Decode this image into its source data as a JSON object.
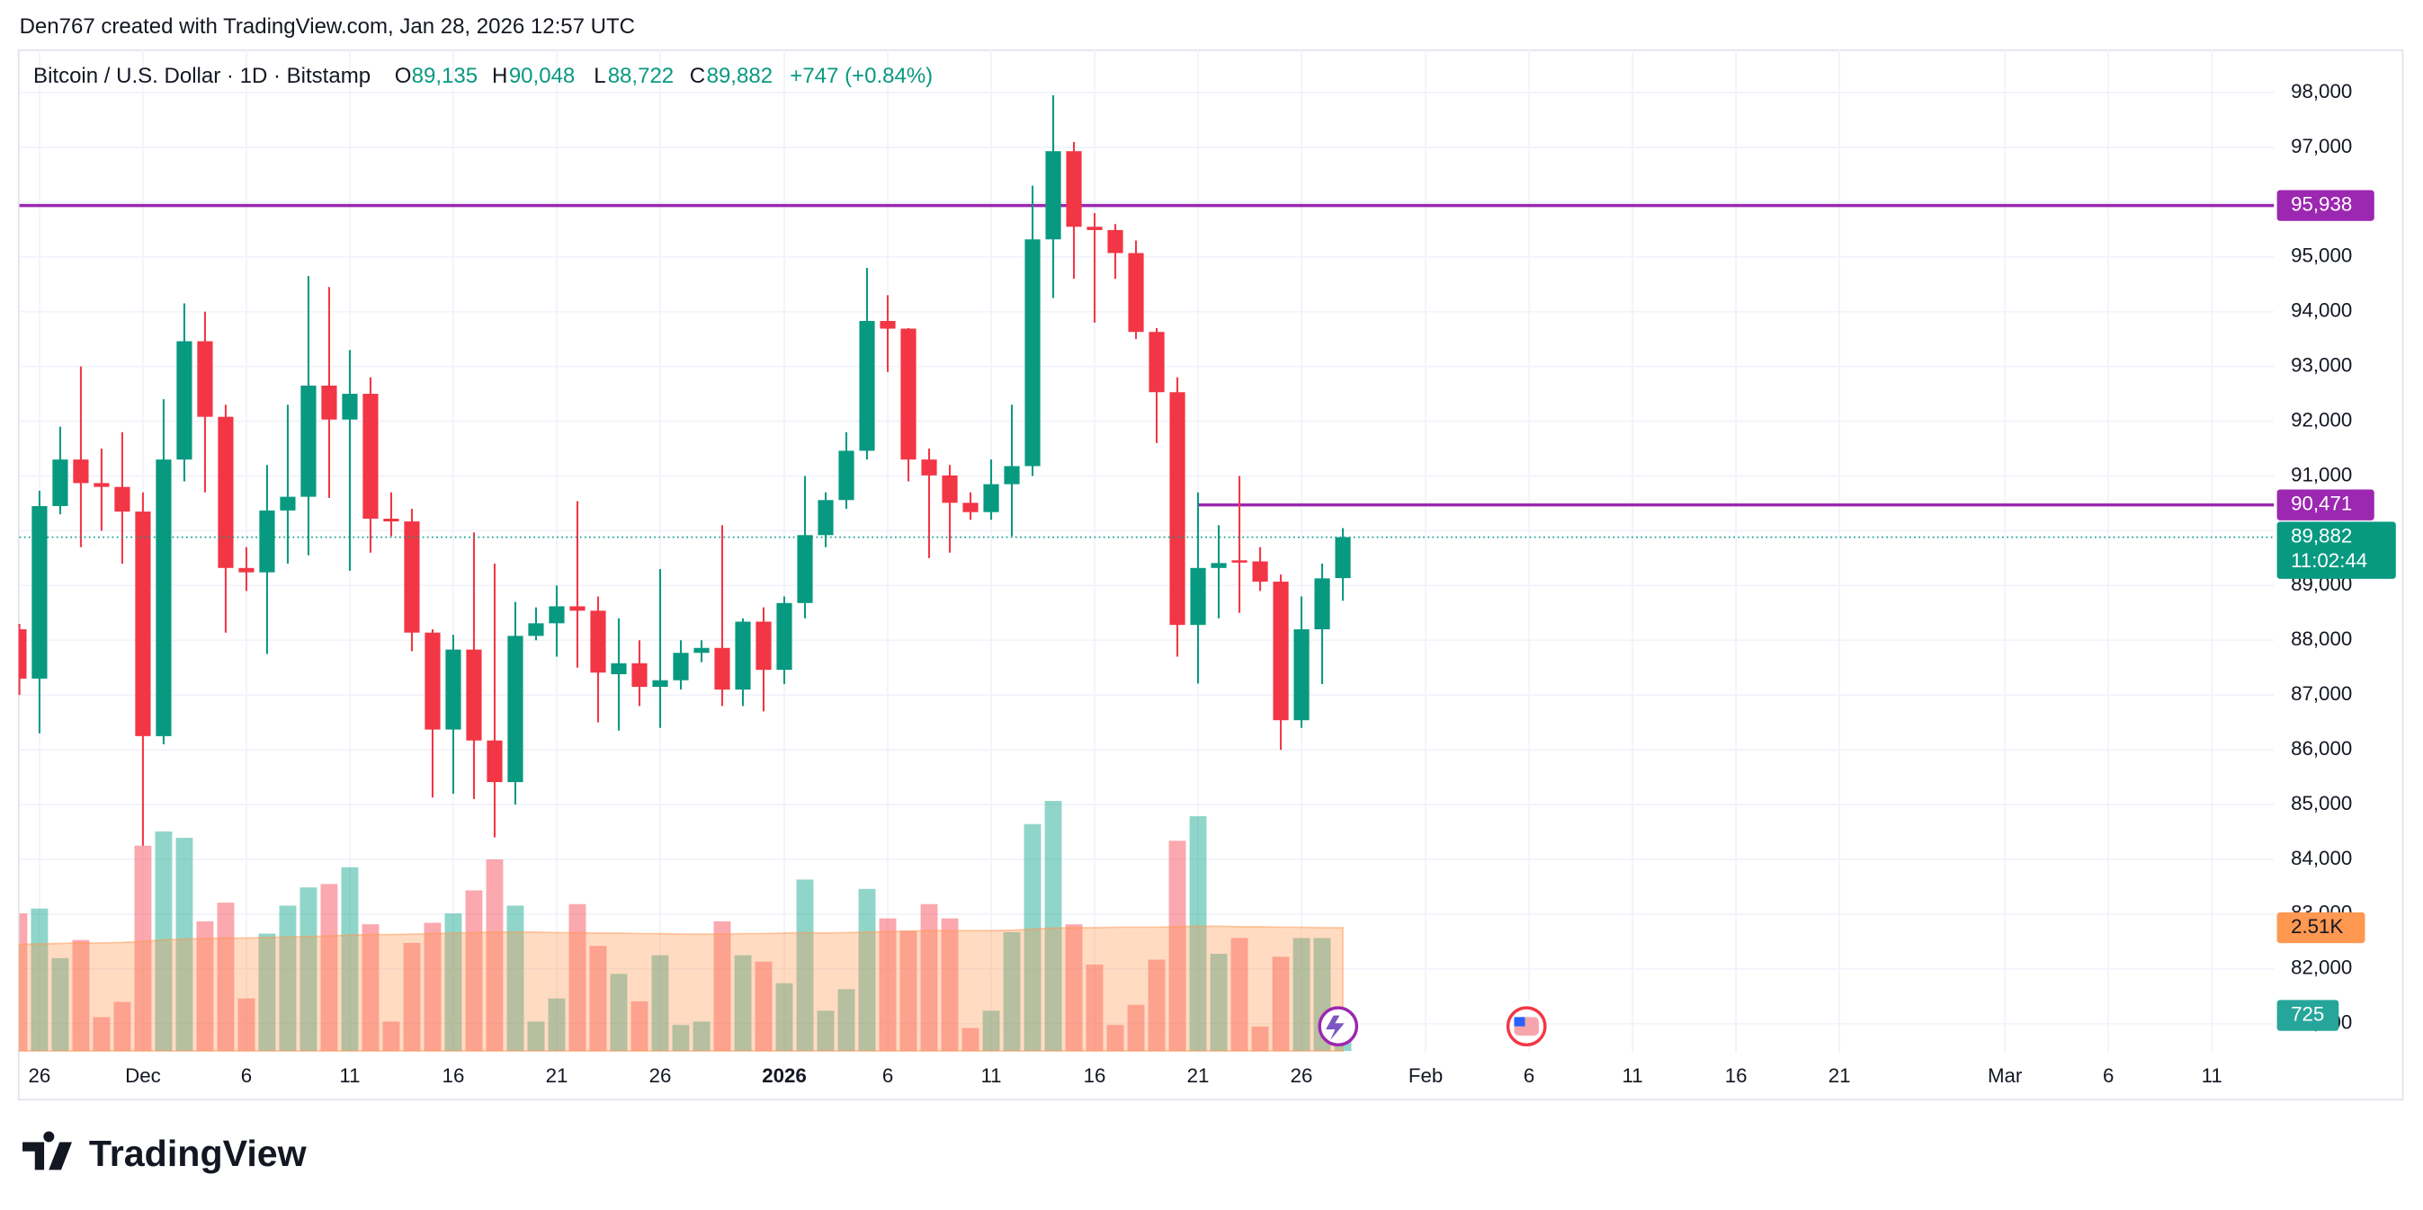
{
  "credit": "Den767 created with TradingView.com, Jan 28, 2026 12:57 UTC",
  "brand": "TradingView",
  "chart_data": {
    "type": "candlestick",
    "title": "Bitcoin / U.S. Dollar · 1D · Bitstamp",
    "ohlc_header": [
      {
        "label": "O",
        "value": "89,135"
      },
      {
        "label": "H",
        "value": "90,048"
      },
      {
        "label": "L",
        "value": "88,722"
      },
      {
        "label": "C",
        "value": "89,882"
      }
    ],
    "change": "+747 (+0.84%)",
    "up_color": "#089981",
    "down_color": "#f23645",
    "volume_up_color": "#22ab94",
    "volume_down_color": "#f7525f",
    "volume_ma_color": "#ff9850",
    "xlim": [
      "2025-11-25",
      "2026-03-14"
    ],
    "xticks": [
      {
        "value": "2025-11-26",
        "label": "26"
      },
      {
        "value": "2025-12-01",
        "label": "Dec"
      },
      {
        "value": "2025-12-06",
        "label": "6"
      },
      {
        "value": "2025-12-11",
        "label": "11"
      },
      {
        "value": "2025-12-16",
        "label": "16"
      },
      {
        "value": "2025-12-21",
        "label": "21"
      },
      {
        "value": "2025-12-26",
        "label": "26"
      },
      {
        "value": "2026-01-01",
        "label": "2026"
      },
      {
        "value": "2026-01-06",
        "label": "6"
      },
      {
        "value": "2026-01-11",
        "label": "11"
      },
      {
        "value": "2026-01-16",
        "label": "16"
      },
      {
        "value": "2026-01-21",
        "label": "21"
      },
      {
        "value": "2026-01-26",
        "label": "26"
      },
      {
        "value": "2026-02-01",
        "label": "Feb"
      },
      {
        "value": "2026-02-06",
        "label": "6"
      },
      {
        "value": "2026-02-11",
        "label": "11"
      },
      {
        "value": "2026-02-16",
        "label": "16"
      },
      {
        "value": "2026-02-21",
        "label": "21"
      },
      {
        "value": "2026-03-01",
        "label": "Mar"
      },
      {
        "value": "2026-03-06",
        "label": "6"
      },
      {
        "value": "2026-03-11",
        "label": "11"
      }
    ],
    "ylim": [
      80500,
      98800
    ],
    "yticks": [
      {
        "value": 81000,
        "label": "81,000"
      },
      {
        "value": 82000,
        "label": "82,000"
      },
      {
        "value": 83000,
        "label": "83,000"
      },
      {
        "value": 84000,
        "label": "84,000"
      },
      {
        "value": 85000,
        "label": "85,000"
      },
      {
        "value": 86000,
        "label": "86,000"
      },
      {
        "value": 87000,
        "label": "87,000"
      },
      {
        "value": 88000,
        "label": "88,000"
      },
      {
        "value": 89000,
        "label": "89,000"
      },
      {
        "value": 90000,
        "label": "90,000"
      },
      {
        "value": 91000,
        "label": "91,000"
      },
      {
        "value": 92000,
        "label": "92,000"
      },
      {
        "value": 93000,
        "label": "93,000"
      },
      {
        "value": 94000,
        "label": "94,000"
      },
      {
        "value": 95000,
        "label": "95,000"
      },
      {
        "value": 96000,
        "label": "96,000"
      },
      {
        "value": 97000,
        "label": "97,000"
      },
      {
        "value": 98000,
        "label": "98,000"
      }
    ],
    "y2lim": [
      0,
      20400
    ],
    "grid": true,
    "hlines": [
      {
        "value": 95938,
        "label": "95,938",
        "start": "2025-11-25",
        "color": "#9c27b0"
      },
      {
        "value": 90471,
        "label": "90,471",
        "start": "2026-01-21",
        "color": "#9c27b0"
      }
    ],
    "last_price_label": "89,882",
    "countdown": "11:02:44",
    "volume_ma_label": "2.51K",
    "candles": [
      {
        "date": "2025-11-25",
        "open": 88200,
        "high": 88300,
        "low": 87000,
        "close": 87300,
        "volume": 2800
      },
      {
        "date": "2025-11-26",
        "open": 87300,
        "high": 90730,
        "low": 86300,
        "close": 90450,
        "volume": 2900
      },
      {
        "date": "2025-11-27",
        "open": 90450,
        "high": 91900,
        "low": 90300,
        "close": 91300,
        "volume": 1890
      },
      {
        "date": "2025-11-28",
        "open": 91300,
        "high": 93000,
        "low": 89700,
        "close": 90870,
        "volume": 2260
      },
      {
        "date": "2025-11-29",
        "open": 90870,
        "high": 91500,
        "low": 90000,
        "close": 90800,
        "volume": 690
      },
      {
        "date": "2025-11-30",
        "open": 90800,
        "high": 91800,
        "low": 89400,
        "close": 90350,
        "volume": 1000
      },
      {
        "date": "2025-12-01",
        "open": 90350,
        "high": 90700,
        "low": 84250,
        "close": 86250,
        "volume": 4180
      },
      {
        "date": "2025-12-02",
        "open": 86250,
        "high": 92400,
        "low": 86100,
        "close": 91300,
        "volume": 4470
      },
      {
        "date": "2025-12-03",
        "open": 91300,
        "high": 94150,
        "low": 90900,
        "close": 93460,
        "volume": 4340
      },
      {
        "date": "2025-12-04",
        "open": 93460,
        "high": 94000,
        "low": 90700,
        "close": 92080,
        "volume": 2640
      },
      {
        "date": "2025-12-05",
        "open": 92080,
        "high": 92300,
        "low": 88140,
        "close": 89320,
        "volume": 3020
      },
      {
        "date": "2025-12-06",
        "open": 89320,
        "high": 89700,
        "low": 88900,
        "close": 89240,
        "volume": 1070
      },
      {
        "date": "2025-12-07",
        "open": 89240,
        "high": 91200,
        "low": 87750,
        "close": 90370,
        "volume": 2390
      },
      {
        "date": "2025-12-08",
        "open": 90370,
        "high": 92300,
        "low": 89400,
        "close": 90620,
        "volume": 2960
      },
      {
        "date": "2025-12-09",
        "open": 90620,
        "high": 94650,
        "low": 89550,
        "close": 92650,
        "volume": 3330
      },
      {
        "date": "2025-12-10",
        "open": 92650,
        "high": 94450,
        "low": 90600,
        "close": 92030,
        "volume": 3400
      },
      {
        "date": "2025-12-11",
        "open": 92030,
        "high": 93300,
        "low": 89270,
        "close": 92500,
        "volume": 3740
      },
      {
        "date": "2025-12-12",
        "open": 92500,
        "high": 92800,
        "low": 89600,
        "close": 90220,
        "volume": 2580
      },
      {
        "date": "2025-12-13",
        "open": 90220,
        "high": 90700,
        "low": 89900,
        "close": 90170,
        "volume": 600
      },
      {
        "date": "2025-12-14",
        "open": 90170,
        "high": 90400,
        "low": 87800,
        "close": 88140,
        "volume": 2200
      },
      {
        "date": "2025-12-15",
        "open": 88140,
        "high": 88200,
        "low": 85130,
        "close": 86370,
        "volume": 2610
      },
      {
        "date": "2025-12-16",
        "open": 86370,
        "high": 88100,
        "low": 85200,
        "close": 87830,
        "volume": 2800
      },
      {
        "date": "2025-12-17",
        "open": 87830,
        "high": 89970,
        "low": 85100,
        "close": 86170,
        "volume": 3270
      },
      {
        "date": "2025-12-18",
        "open": 86170,
        "high": 89400,
        "low": 84400,
        "close": 85410,
        "volume": 3900
      },
      {
        "date": "2025-12-19",
        "open": 85410,
        "high": 88700,
        "low": 85000,
        "close": 88080,
        "volume": 2960
      },
      {
        "date": "2025-12-20",
        "open": 88080,
        "high": 88600,
        "low": 88000,
        "close": 88310,
        "volume": 600
      },
      {
        "date": "2025-12-21",
        "open": 88310,
        "high": 89000,
        "low": 87700,
        "close": 88620,
        "volume": 1070
      },
      {
        "date": "2025-12-22",
        "open": 88620,
        "high": 90540,
        "low": 87500,
        "close": 88540,
        "volume": 2990
      },
      {
        "date": "2025-12-23",
        "open": 88540,
        "high": 88800,
        "low": 86500,
        "close": 87410,
        "volume": 2140
      },
      {
        "date": "2025-12-24",
        "open": 87380,
        "high": 88400,
        "low": 86350,
        "close": 87580,
        "volume": 1570
      },
      {
        "date": "2025-12-25",
        "open": 87580,
        "high": 88000,
        "low": 86800,
        "close": 87150,
        "volume": 1010
      },
      {
        "date": "2025-12-26",
        "open": 87150,
        "high": 89300,
        "low": 86400,
        "close": 87270,
        "volume": 1950
      },
      {
        "date": "2025-12-27",
        "open": 87270,
        "high": 88000,
        "low": 87100,
        "close": 87770,
        "volume": 530
      },
      {
        "date": "2025-12-28",
        "open": 87770,
        "high": 88000,
        "low": 87600,
        "close": 87860,
        "volume": 600
      },
      {
        "date": "2025-12-29",
        "open": 87860,
        "high": 90100,
        "low": 86800,
        "close": 87100,
        "volume": 2640
      },
      {
        "date": "2025-12-30",
        "open": 87100,
        "high": 88400,
        "low": 86800,
        "close": 88340,
        "volume": 1950
      },
      {
        "date": "2025-12-31",
        "open": 88340,
        "high": 88600,
        "low": 86700,
        "close": 87460,
        "volume": 1820
      },
      {
        "date": "2026-01-01",
        "open": 87460,
        "high": 88800,
        "low": 87200,
        "close": 88680,
        "volume": 1380
      },
      {
        "date": "2026-01-02",
        "open": 88680,
        "high": 91000,
        "low": 88400,
        "close": 89920,
        "volume": 3490
      },
      {
        "date": "2026-01-03",
        "open": 89920,
        "high": 90700,
        "low": 89700,
        "close": 90560,
        "volume": 820
      },
      {
        "date": "2026-01-04",
        "open": 90560,
        "high": 91800,
        "low": 90400,
        "close": 91460,
        "volume": 1260
      },
      {
        "date": "2026-01-05",
        "open": 91460,
        "high": 94800,
        "low": 91300,
        "close": 93830,
        "volume": 3300
      },
      {
        "date": "2026-01-06",
        "open": 93830,
        "high": 94300,
        "low": 92900,
        "close": 93690,
        "volume": 2700
      },
      {
        "date": "2026-01-07",
        "open": 93690,
        "high": 93700,
        "low": 90900,
        "close": 91300,
        "volume": 2450
      },
      {
        "date": "2026-01-08",
        "open": 91300,
        "high": 91500,
        "low": 89500,
        "close": 91010,
        "volume": 2990
      },
      {
        "date": "2026-01-09",
        "open": 91010,
        "high": 91200,
        "low": 89600,
        "close": 90510,
        "volume": 2700
      },
      {
        "date": "2026-01-10",
        "open": 90510,
        "high": 90700,
        "low": 90200,
        "close": 90340,
        "volume": 470
      },
      {
        "date": "2026-01-11",
        "open": 90340,
        "high": 91300,
        "low": 90200,
        "close": 90850,
        "volume": 820
      },
      {
        "date": "2026-01-12",
        "open": 90850,
        "high": 92300,
        "low": 89900,
        "close": 91180,
        "volume": 2420
      },
      {
        "date": "2026-01-13",
        "open": 91180,
        "high": 96300,
        "low": 91000,
        "close": 95320,
        "volume": 4620
      },
      {
        "date": "2026-01-14",
        "open": 95320,
        "high": 97950,
        "low": 94250,
        "close": 96930,
        "volume": 5090
      },
      {
        "date": "2026-01-15",
        "open": 96930,
        "high": 97100,
        "low": 94600,
        "close": 95550,
        "volume": 2580
      },
      {
        "date": "2026-01-16",
        "open": 95550,
        "high": 95800,
        "low": 93800,
        "close": 95490,
        "volume": 1760
      },
      {
        "date": "2026-01-17",
        "open": 95490,
        "high": 95600,
        "low": 94600,
        "close": 95070,
        "volume": 530
      },
      {
        "date": "2026-01-18",
        "open": 95070,
        "high": 95300,
        "low": 93500,
        "close": 93630,
        "volume": 940
      },
      {
        "date": "2026-01-19",
        "open": 93630,
        "high": 93700,
        "low": 91600,
        "close": 92530,
        "volume": 1860
      },
      {
        "date": "2026-01-20",
        "open": 92530,
        "high": 92800,
        "low": 87700,
        "close": 88280,
        "volume": 4280
      },
      {
        "date": "2026-01-21",
        "open": 88280,
        "high": 90700,
        "low": 87210,
        "close": 89320,
        "volume": 4780
      },
      {
        "date": "2026-01-22",
        "open": 89320,
        "high": 90100,
        "low": 88400,
        "close": 89410,
        "volume": 1980
      },
      {
        "date": "2026-01-23",
        "open": 89460,
        "high": 91000,
        "low": 88500,
        "close": 89440,
        "volume": 2300
      },
      {
        "date": "2026-01-24",
        "open": 89440,
        "high": 89700,
        "low": 88900,
        "close": 89070,
        "volume": 500
      },
      {
        "date": "2026-01-25",
        "open": 89070,
        "high": 89200,
        "low": 86000,
        "close": 86540,
        "volume": 1920
      },
      {
        "date": "2026-01-26",
        "open": 86540,
        "high": 88800,
        "low": 86400,
        "close": 88200,
        "volume": 2300
      },
      {
        "date": "2026-01-27",
        "open": 88200,
        "high": 89400,
        "low": 87200,
        "close": 89130,
        "volume": 2300
      },
      {
        "date": "2026-01-28",
        "open": 89135,
        "high": 90048,
        "low": 88722,
        "close": 89882,
        "volume": 725
      }
    ],
    "volume_ma": [
      2170,
      2180,
      2190,
      2200,
      2200,
      2210,
      2230,
      2260,
      2280,
      2290,
      2300,
      2300,
      2310,
      2320,
      2330,
      2340,
      2360,
      2370,
      2370,
      2380,
      2390,
      2400,
      2410,
      2420,
      2420,
      2420,
      2410,
      2410,
      2400,
      2400,
      2390,
      2390,
      2380,
      2380,
      2380,
      2390,
      2390,
      2400,
      2410,
      2400,
      2410,
      2420,
      2430,
      2440,
      2450,
      2450,
      2450,
      2450,
      2460,
      2480,
      2500,
      2510,
      2510,
      2520,
      2520,
      2520,
      2530,
      2540,
      2540,
      2530,
      2530,
      2520,
      2520,
      2510,
      2510
    ]
  }
}
